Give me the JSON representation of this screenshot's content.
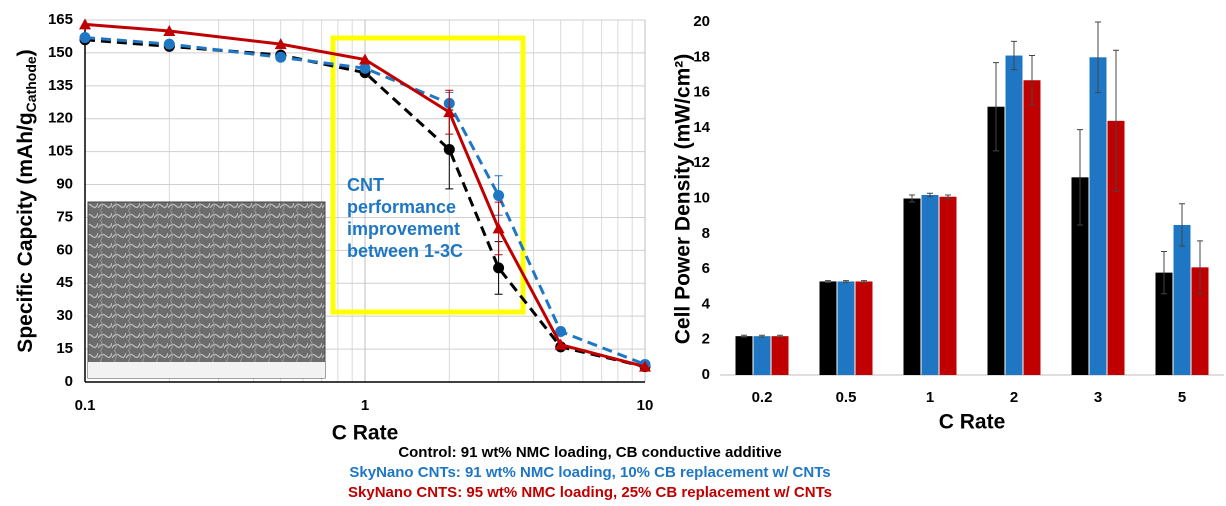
{
  "chart_data": [
    {
      "type": "line",
      "xscale": "log",
      "grid": true,
      "x": [
        0.1,
        0.2,
        0.5,
        1,
        2,
        3,
        5,
        10
      ],
      "xlim": [
        0.1,
        10
      ],
      "xticks": [
        0.1,
        1,
        10
      ],
      "ylim": [
        0,
        165
      ],
      "yticks": [
        0,
        15,
        30,
        45,
        60,
        75,
        90,
        105,
        120,
        135,
        150,
        165
      ],
      "xlabel": "C Rate",
      "ylabel": {
        "text": "Specific Capcity (mAh/g",
        "sub": "Cathode",
        "end": ")"
      },
      "annotation": [
        "CNT",
        "performance",
        "improvement",
        "between 1-3C"
      ],
      "series": [
        {
          "name": "Control: 91 wt% NMC loading, CB conductive additive",
          "color": "#000000",
          "marker": "circle",
          "dashed": true,
          "values": [
            156,
            153,
            149,
            141,
            106,
            52,
            16,
            7
          ],
          "errors": [
            null,
            null,
            null,
            null,
            18,
            12,
            null,
            null
          ]
        },
        {
          "name": "SkyNano CNTs: 91 wt% NMC loading, 10% CB replacement w/ CNTs",
          "color": "#1f77c4",
          "marker": "circle",
          "dashed": true,
          "values": [
            157,
            154,
            148,
            143,
            127,
            85,
            23,
            8
          ],
          "errors": [
            null,
            null,
            null,
            null,
            5,
            9,
            null,
            null
          ]
        },
        {
          "name": "SkyNano CNTS: 95 wt% NMC loading, 25% CB replacement w/ CNTs",
          "color": "#c00000",
          "marker": "triangle",
          "dashed": false,
          "values": [
            163,
            160,
            154,
            147,
            123,
            70,
            17,
            7
          ],
          "errors": [
            null,
            null,
            null,
            null,
            10,
            12,
            null,
            null
          ]
        }
      ]
    },
    {
      "type": "bar",
      "categories": [
        "0.2",
        "0.5",
        "1",
        "2",
        "3",
        "5"
      ],
      "ylim": [
        0,
        20
      ],
      "yticks": [
        0,
        2,
        4,
        6,
        8,
        10,
        12,
        14,
        16,
        18,
        20
      ],
      "xlabel": "C Rate",
      "ylabel": "Cell Power Density (mW/cm²)",
      "series": [
        {
          "color": "#000000",
          "values": [
            2.2,
            5.3,
            10.0,
            15.2,
            11.2,
            5.8
          ],
          "errors": [
            0.05,
            0.05,
            0.2,
            2.5,
            2.7,
            1.2
          ]
        },
        {
          "color": "#1f77c4",
          "values": [
            2.2,
            5.3,
            10.2,
            18.1,
            18.0,
            8.5
          ],
          "errors": [
            0.05,
            0.05,
            0.1,
            0.8,
            2.0,
            1.2
          ]
        },
        {
          "color": "#c00000",
          "values": [
            2.2,
            5.3,
            10.1,
            16.7,
            14.4,
            6.1
          ],
          "errors": [
            0.05,
            0.05,
            0.1,
            1.4,
            4.0,
            1.5
          ]
        }
      ]
    }
  ]
}
